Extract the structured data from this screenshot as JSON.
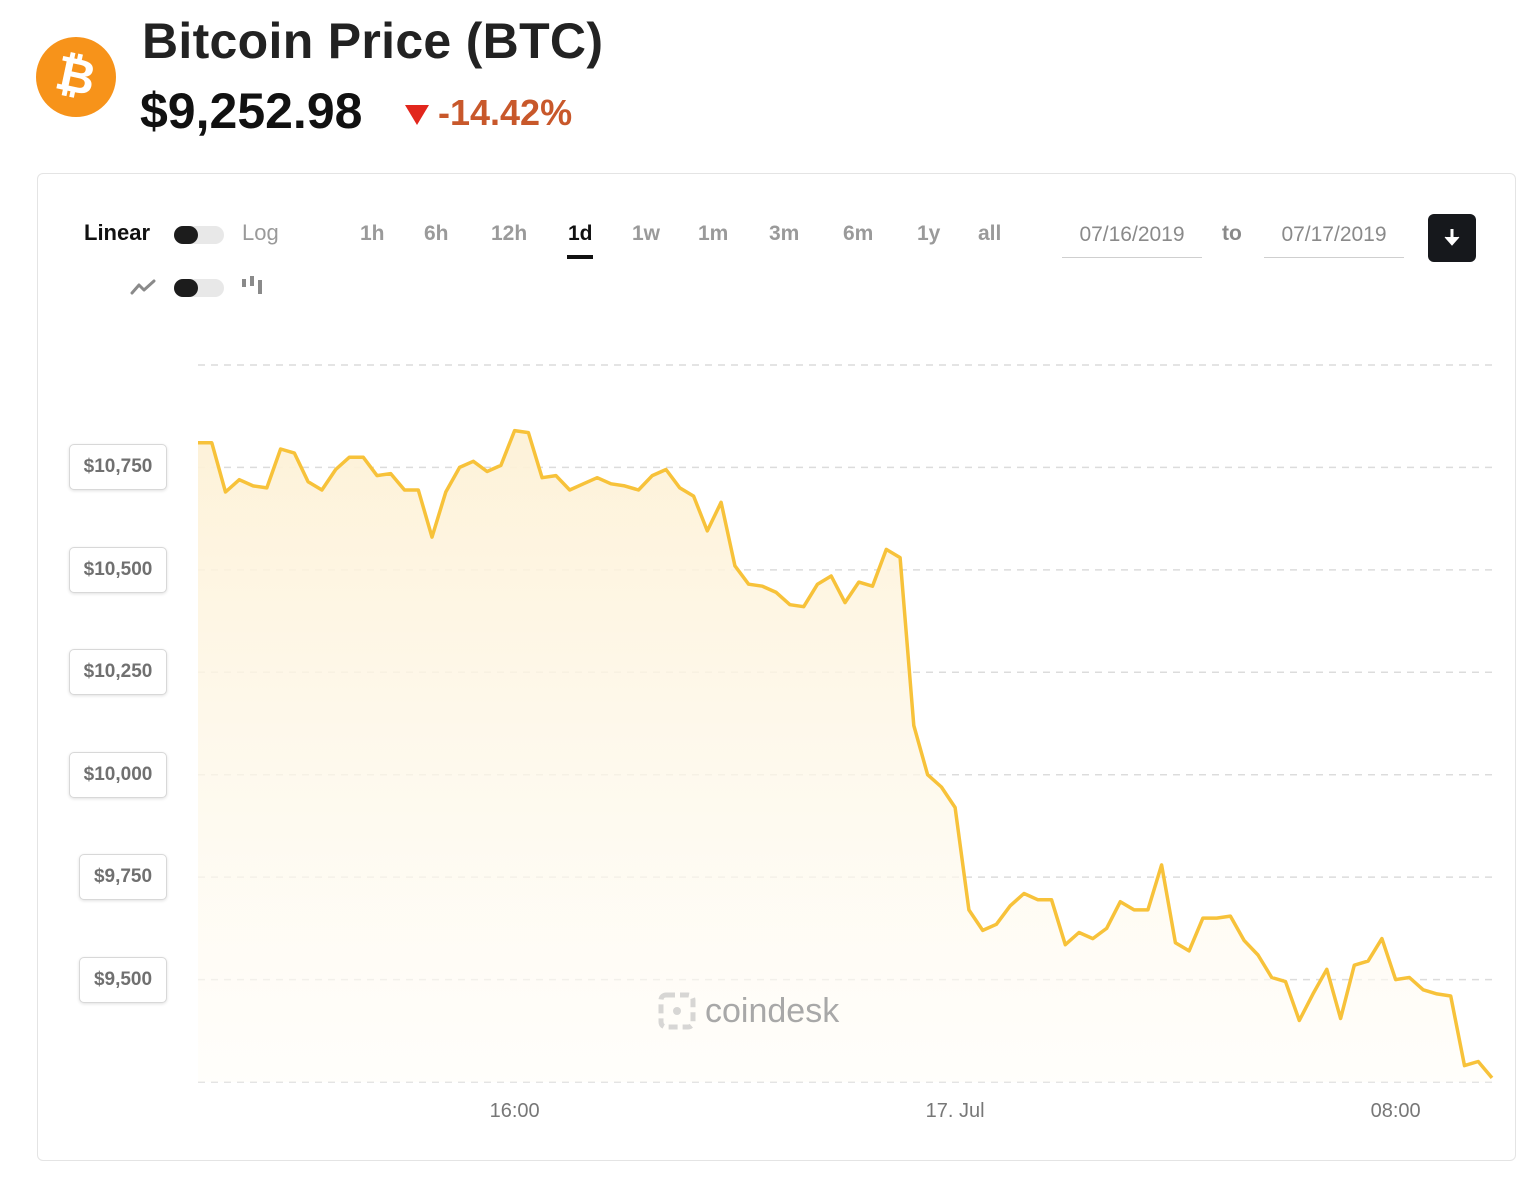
{
  "header": {
    "logo_icon": "bitcoin-icon",
    "title": "Bitcoin Price (BTC)",
    "price": "$9,252.98",
    "change": "-14.42%",
    "change_direction": "down",
    "colors": {
      "brand": "#f7931a",
      "negative": "#e2261c",
      "line": "#f7c23a"
    }
  },
  "controls": {
    "scale_left": "Linear",
    "scale_right": "Log",
    "chart_type_left_icon": "line-chart-icon",
    "chart_type_right_icon": "candlestick-icon",
    "ranges": [
      "1h",
      "6h",
      "12h",
      "1d",
      "1w",
      "1m",
      "3m",
      "6m",
      "1y",
      "all"
    ],
    "active_range": "1d",
    "date_from": "07/16/2019",
    "date_to": "07/17/2019",
    "to_label": "to",
    "download_icon": "download-arrow-icon"
  },
  "watermark": "coindesk",
  "chart_data": {
    "type": "area",
    "title": "",
    "xlabel": "",
    "ylabel": "",
    "x_ticks": [
      "16:00",
      "17. Jul",
      "08:00"
    ],
    "x_tick_hours": [
      16,
      24,
      32
    ],
    "y_ticks": [
      9500,
      9750,
      10000,
      10250,
      10500,
      10750
    ],
    "y_tick_labels": [
      "$9,500",
      "$9,750",
      "$10,000",
      "$10,250",
      "$10,500",
      "$10,750"
    ],
    "xlim_hours": [
      10.25,
      33.75
    ],
    "ylim": [
      9250,
      11000
    ],
    "grid": "horizontal-dashed",
    "legend": "none",
    "series": [
      {
        "interval_minutes": 15,
        "start_hour": 10.25,
        "values": [
          10810,
          10810,
          10690,
          10720,
          10705,
          10700,
          10795,
          10785,
          10715,
          10695,
          10745,
          10775,
          10775,
          10730,
          10735,
          10695,
          10695,
          10580,
          10690,
          10750,
          10765,
          10740,
          10755,
          10840,
          10835,
          10725,
          10730,
          10695,
          10710,
          10725,
          10710,
          10705,
          10695,
          10730,
          10745,
          10700,
          10680,
          10595,
          10665,
          10510,
          10465,
          10460,
          10445,
          10415,
          10410,
          10465,
          10485,
          10420,
          10470,
          10460,
          10550,
          10530,
          10120,
          10000,
          9970,
          9920,
          9670,
          9620,
          9635,
          9680,
          9710,
          9695,
          9695,
          9585,
          9615,
          9600,
          9625,
          9690,
          9670,
          9670,
          9780,
          9590,
          9570,
          9650,
          9650,
          9655,
          9595,
          9560,
          9505,
          9495,
          9400,
          9465,
          9525,
          9405,
          9535,
          9545,
          9600,
          9500,
          9505,
          9475,
          9465,
          9460,
          9290,
          9300,
          9260
        ]
      }
    ]
  }
}
